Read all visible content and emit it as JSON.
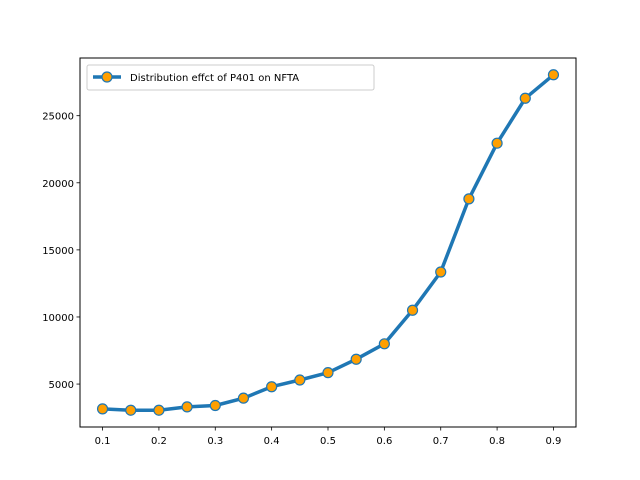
{
  "chart_data": {
    "type": "line",
    "title": "",
    "xlabel": "",
    "ylabel": "",
    "x": [
      0.1,
      0.15,
      0.2,
      0.25,
      0.3,
      0.35,
      0.4,
      0.45,
      0.5,
      0.55,
      0.6,
      0.65,
      0.7,
      0.75,
      0.8,
      0.85,
      0.9
    ],
    "series": [
      {
        "name": "Distribution effct of P401 on NFTA",
        "values": [
          3150,
          3050,
          3050,
          3300,
          3400,
          3950,
          4800,
          5300,
          5850,
          6850,
          8000,
          10500,
          13350,
          18800,
          22950,
          26300,
          28050
        ],
        "line_color": "#1f77b4",
        "marker_color": "#ff9f00"
      }
    ],
    "xlim": [
      0.06,
      0.94
    ],
    "ylim": [
      1800,
      29300
    ],
    "xticks": [
      0.1,
      0.2,
      0.3,
      0.4,
      0.5,
      0.6,
      0.7,
      0.8,
      0.9
    ],
    "xtick_labels": [
      "0.1",
      "0.2",
      "0.3",
      "0.4",
      "0.5",
      "0.6",
      "0.7",
      "0.8",
      "0.9"
    ],
    "yticks": [
      5000,
      10000,
      15000,
      20000,
      25000
    ],
    "ytick_labels": [
      "5000",
      "10000",
      "15000",
      "20000",
      "25000"
    ],
    "grid": false,
    "legend_position": "top-left"
  }
}
